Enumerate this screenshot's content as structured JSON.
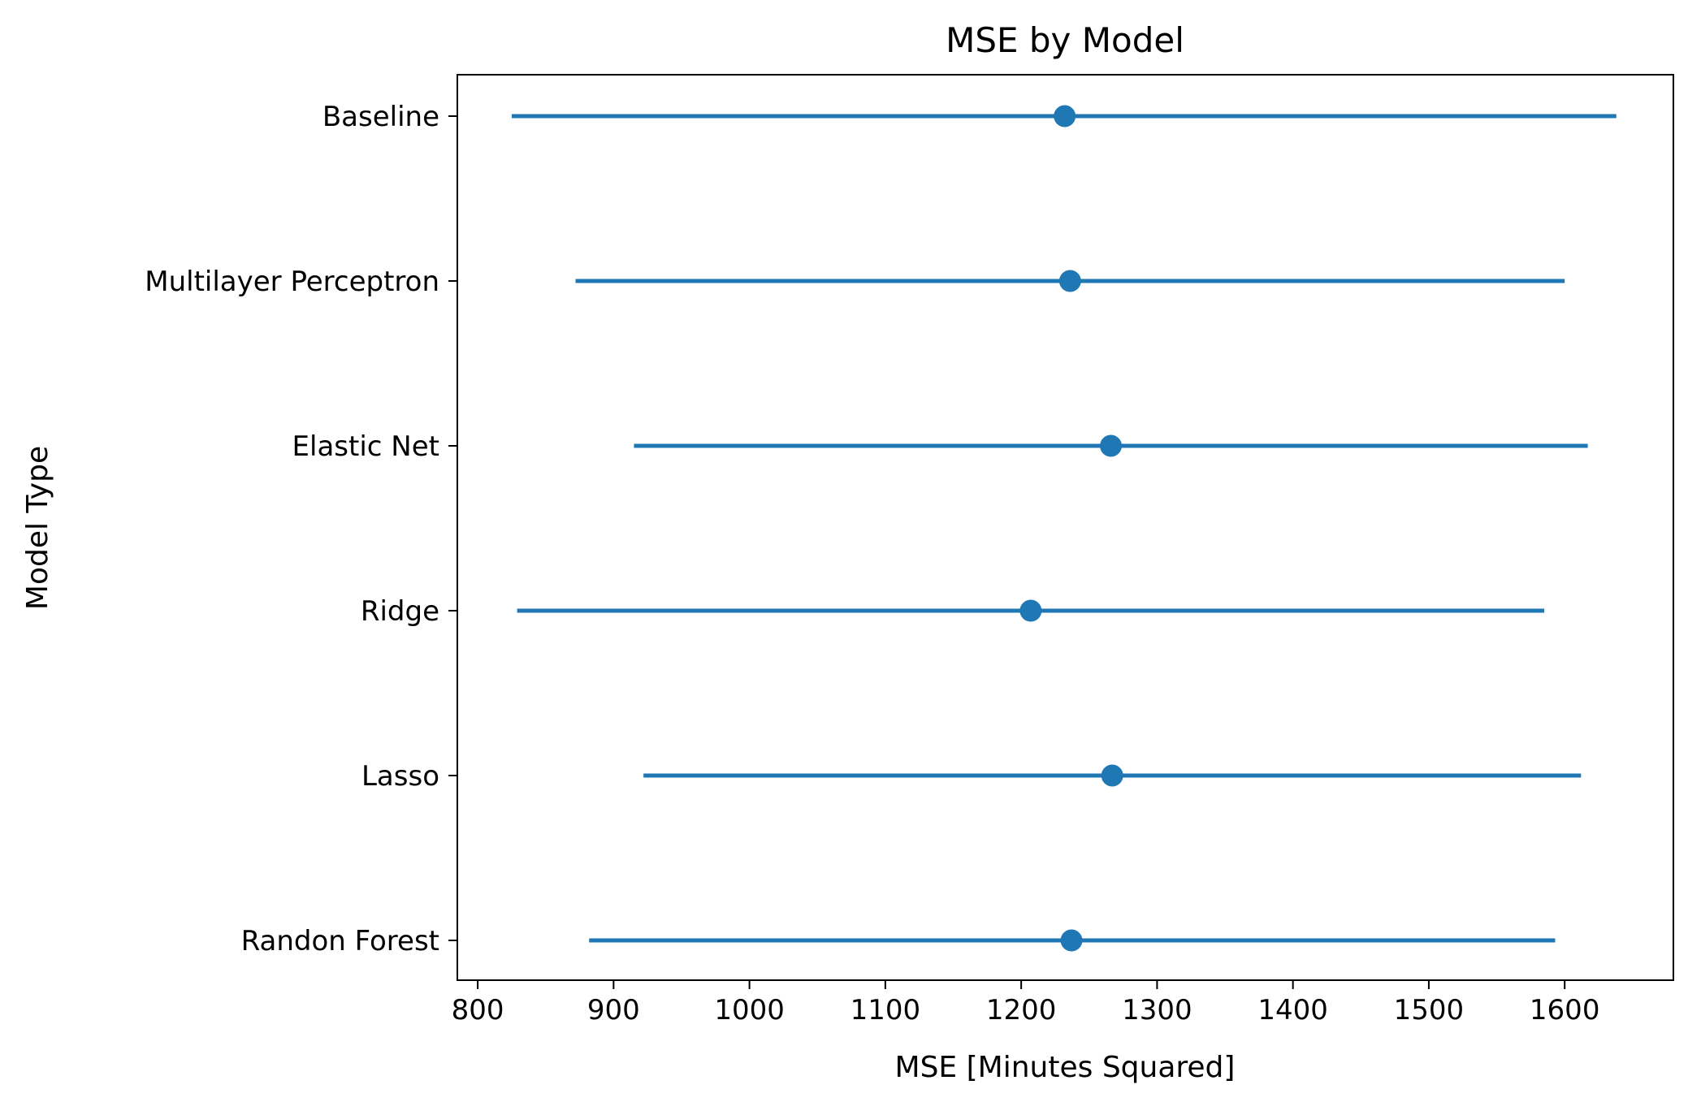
{
  "chart_data": {
    "type": "errorbar",
    "title": "MSE by Model",
    "xlabel": "MSE [Minutes Squared]",
    "ylabel": "Model Type",
    "xlim": [
      785,
      1680
    ],
    "xticks": [
      800,
      900,
      1000,
      1100,
      1200,
      1300,
      1400,
      1500,
      1600
    ],
    "grid": false,
    "series_color": "#1f77b4",
    "categories": [
      "Baseline",
      "Multilayer Perceptron",
      "Elastic Net",
      "Ridge",
      "Lasso",
      "Randon Forest"
    ],
    "points": [
      {
        "label": "Baseline",
        "value": 1232,
        "low": 825,
        "high": 1638
      },
      {
        "label": "Multilayer Perceptron",
        "value": 1236,
        "low": 872,
        "high": 1600
      },
      {
        "label": "Elastic Net",
        "value": 1266,
        "low": 915,
        "high": 1617
      },
      {
        "label": "Ridge",
        "value": 1207,
        "low": 829,
        "high": 1585
      },
      {
        "label": "Lasso",
        "value": 1267,
        "low": 922,
        "high": 1612
      },
      {
        "label": "Randon Forest",
        "value": 1237,
        "low": 882,
        "high": 1593
      }
    ]
  }
}
